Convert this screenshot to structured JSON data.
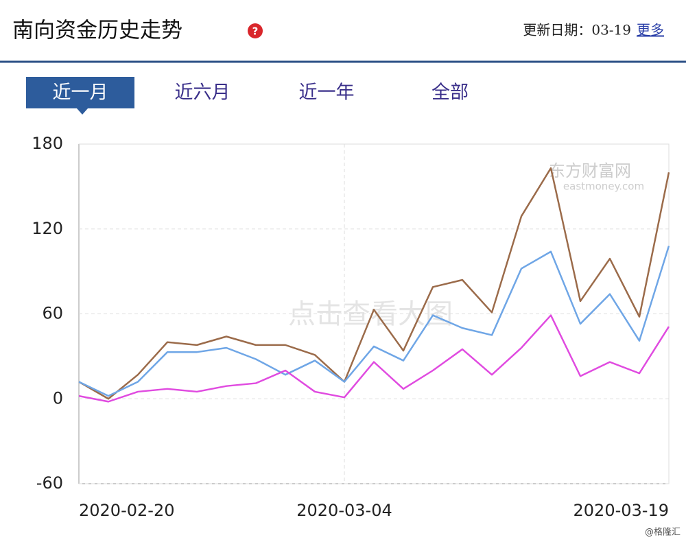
{
  "header": {
    "title": "南向资金历史走势",
    "update": "更新日期：03-19",
    "more": "更多"
  },
  "tabs": [
    "近一月",
    "近六月",
    "近一年",
    "全部"
  ],
  "watermarks": {
    "brand": "东方财富网",
    "site": "eastmoney.com",
    "hint": "点击查看大图",
    "credit": "@格隆汇"
  },
  "chart_data": {
    "type": "line",
    "categories": [
      "2020-02-20",
      null,
      null,
      null,
      null,
      null,
      null,
      null,
      null,
      "2020-03-04",
      null,
      null,
      null,
      null,
      null,
      null,
      null,
      null,
      null,
      null,
      "2020-03-19"
    ],
    "series": [
      {
        "color": "#9b6b4a",
        "values": [
          12,
          0,
          17,
          40,
          38,
          44,
          38,
          38,
          31,
          12,
          63,
          34,
          79,
          84,
          61,
          129,
          163,
          69,
          99,
          58,
          160
        ]
      },
      {
        "color": "#6fa6e6",
        "values": [
          12,
          2,
          12,
          33,
          33,
          36,
          28,
          17,
          27,
          12,
          37,
          27,
          59,
          50,
          45,
          92,
          104,
          53,
          74,
          41,
          108
        ]
      },
      {
        "color": "#e04be0",
        "values": [
          2,
          -2,
          5,
          7,
          5,
          9,
          11,
          20,
          5,
          1,
          26,
          7,
          20,
          35,
          17,
          36,
          59,
          16,
          26,
          18,
          51
        ]
      }
    ],
    "ylim": [
      -60,
      180
    ],
    "yticks": [
      -60,
      0,
      60,
      120,
      180
    ],
    "grid": true
  }
}
